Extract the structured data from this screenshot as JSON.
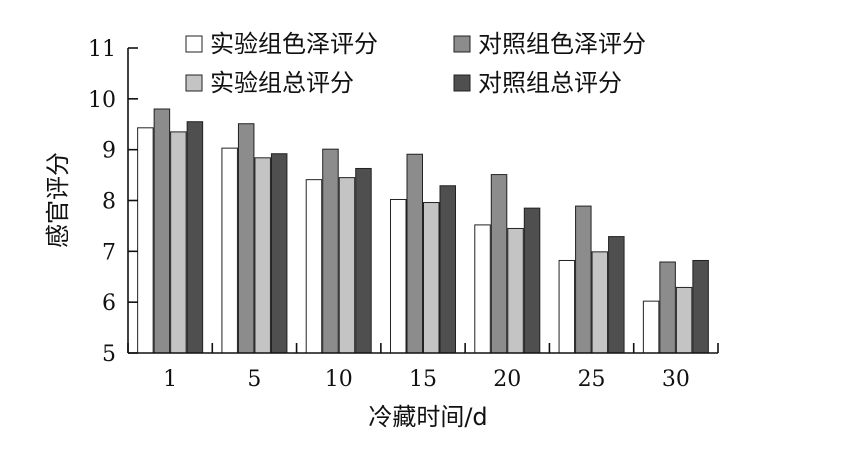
{
  "chart_data": {
    "type": "bar",
    "title": "",
    "xlabel": "冷藏时间/d",
    "ylabel": "感官评分",
    "categories": [
      "1",
      "5",
      "10",
      "15",
      "20",
      "25",
      "30"
    ],
    "ylim": [
      5,
      11
    ],
    "yticks": [
      "5",
      "6",
      "7",
      "8",
      "9",
      "10",
      "11"
    ],
    "grid": false,
    "legend_position": "top",
    "series": [
      {
        "name": "实验组色泽评分",
        "color": "#ffffff",
        "values": [
          9.43,
          9.03,
          8.41,
          8.02,
          7.52,
          6.82,
          6.02
        ]
      },
      {
        "name": "对照组色泽评分",
        "color": "#8c8c8c",
        "values": [
          9.8,
          9.51,
          9.01,
          8.91,
          8.51,
          7.89,
          6.79
        ]
      },
      {
        "name": "实验组总评分",
        "color": "#c4c4c4",
        "values": [
          9.35,
          8.84,
          8.45,
          7.96,
          7.45,
          6.99,
          6.29
        ]
      },
      {
        "name": "对照组总评分",
        "color": "#4f4f4f",
        "values": [
          9.55,
          8.92,
          8.63,
          8.29,
          7.85,
          7.29,
          6.82
        ]
      }
    ]
  }
}
